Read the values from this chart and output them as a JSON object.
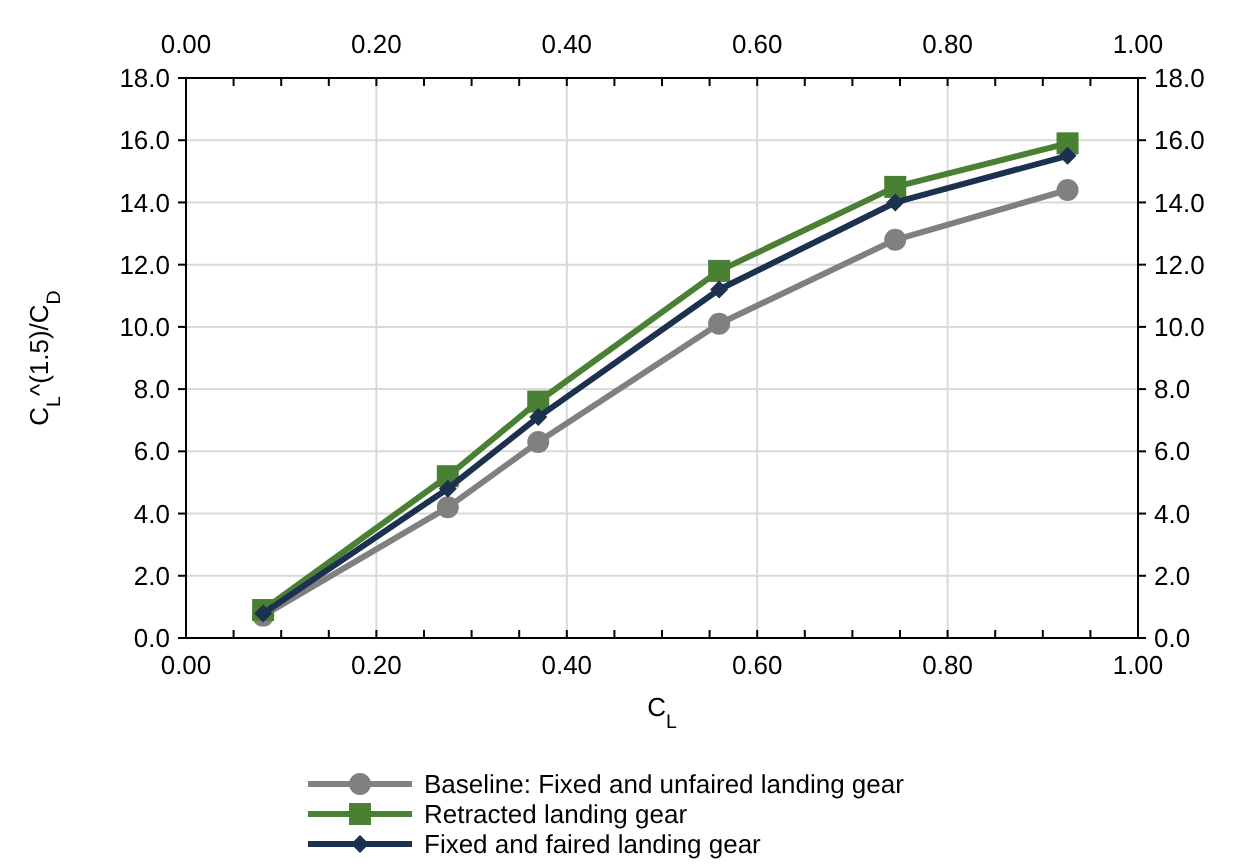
{
  "chart_data": {
    "type": "line",
    "xlabel": "C$_{L}$",
    "ylabel": "C$_{L}$^(1.5)/C$_{D}$",
    "xlim": [
      0,
      1
    ],
    "x2lim": [
      0,
      1
    ],
    "ylim": [
      0,
      18
    ],
    "y2lim": [
      0,
      18
    ],
    "xticks": [
      {
        "value": 0,
        "label": "0.00"
      },
      {
        "value": 0.05,
        "label": null
      },
      {
        "value": 0.1,
        "label": null
      },
      {
        "value": 0.15,
        "label": null
      },
      {
        "value": 0.2,
        "label": "0.20"
      },
      {
        "value": 0.25,
        "label": null
      },
      {
        "value": 0.3,
        "label": null
      },
      {
        "value": 0.35,
        "label": null
      },
      {
        "value": 0.4,
        "label": "0.40"
      },
      {
        "value": 0.45,
        "label": null
      },
      {
        "value": 0.5,
        "label": null
      },
      {
        "value": 0.55,
        "label": null
      },
      {
        "value": 0.6,
        "label": "0.60"
      },
      {
        "value": 0.65,
        "label": null
      },
      {
        "value": 0.7,
        "label": null
      },
      {
        "value": 0.75,
        "label": null
      },
      {
        "value": 0.8,
        "label": "0.80"
      },
      {
        "value": 0.85,
        "label": null
      },
      {
        "value": 0.9,
        "label": null
      },
      {
        "value": 0.95,
        "label": null
      },
      {
        "value": 1,
        "label": "1.00"
      }
    ],
    "x2ticks": [
      {
        "value": 0,
        "label": "0.00"
      },
      {
        "value": 0.05,
        "label": null
      },
      {
        "value": 0.1,
        "label": null
      },
      {
        "value": 0.15,
        "label": null
      },
      {
        "value": 0.2,
        "label": "0.20"
      },
      {
        "value": 0.25,
        "label": null
      },
      {
        "value": 0.3,
        "label": null
      },
      {
        "value": 0.35,
        "label": null
      },
      {
        "value": 0.4,
        "label": "0.40"
      },
      {
        "value": 0.45,
        "label": null
      },
      {
        "value": 0.5,
        "label": null
      },
      {
        "value": 0.55,
        "label": null
      },
      {
        "value": 0.6,
        "label": "0.60"
      },
      {
        "value": 0.65,
        "label": null
      },
      {
        "value": 0.7,
        "label": null
      },
      {
        "value": 0.75,
        "label": null
      },
      {
        "value": 0.8,
        "label": "0.80"
      },
      {
        "value": 0.85,
        "label": null
      },
      {
        "value": 0.9,
        "label": null
      },
      {
        "value": 0.95,
        "label": null
      },
      {
        "value": 1,
        "label": "1.00"
      }
    ],
    "yticks": [
      {
        "value": 0,
        "label": "0.0"
      },
      {
        "value": 2,
        "label": "2.0"
      },
      {
        "value": 4,
        "label": "4.0"
      },
      {
        "value": 6,
        "label": "6.0"
      },
      {
        "value": 8,
        "label": "8.0"
      },
      {
        "value": 10,
        "label": "10.0"
      },
      {
        "value": 12,
        "label": "12.0"
      },
      {
        "value": 14,
        "label": "14.0"
      },
      {
        "value": 16,
        "label": "16.0"
      },
      {
        "value": 18,
        "label": "18.0"
      }
    ],
    "y2ticks": [
      {
        "value": 0,
        "label": "0.0"
      },
      {
        "value": 2,
        "label": "2.0"
      },
      {
        "value": 4,
        "label": "4.0"
      },
      {
        "value": 6,
        "label": "6.0"
      },
      {
        "value": 8,
        "label": "8.0"
      },
      {
        "value": 10,
        "label": "10.0"
      },
      {
        "value": 12,
        "label": "12.0"
      },
      {
        "value": 14,
        "label": "14.0"
      },
      {
        "value": 16,
        "label": "16.0"
      },
      {
        "value": 18,
        "label": "18.0"
      }
    ],
    "grid": true,
    "legend": "bottom",
    "line_style": "solid",
    "x": [
      0.081,
      0.275,
      0.37,
      0.56,
      0.745,
      0.926
    ],
    "series": [
      {
        "name": "Baseline: Fixed and unfaired landing gear",
        "color": "#808080",
        "marker": "circle",
        "values": [
          0.72,
          4.2,
          6.3,
          10.1,
          12.8,
          14.4
        ]
      },
      {
        "name": "Retracted landing gear",
        "color": "#4a8034",
        "marker": "square",
        "values": [
          0.9,
          5.2,
          7.6,
          11.8,
          14.5,
          15.9
        ]
      },
      {
        "name": "Fixed and faired landing gear",
        "color": "#1c3050",
        "marker": "diamond",
        "values": [
          0.79,
          4.8,
          7.1,
          11.2,
          14.0,
          15.5
        ]
      }
    ]
  }
}
